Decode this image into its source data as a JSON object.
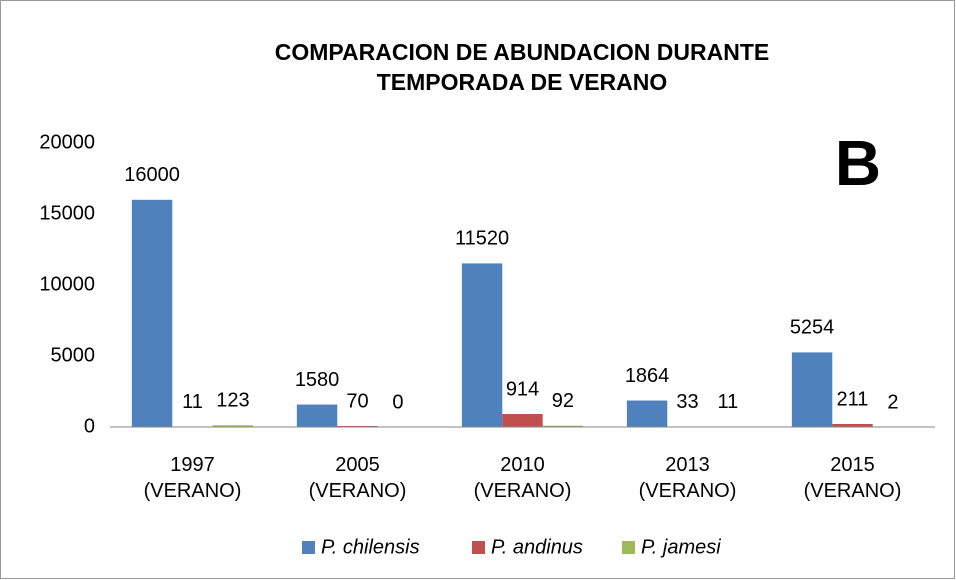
{
  "chart_data": {
    "type": "bar",
    "title": "COMPARACION DE ABUNDACION DURANTE\nTEMPORADA DE VERANO",
    "annotation": "B",
    "categories": [
      "1997\n(VERANO)",
      "2005\n(VERANO)",
      "2010\n(VERANO)",
      "2013\n(VERANO)",
      "2015\n(VERANO)"
    ],
    "series": [
      {
        "name": "P. chilensis",
        "color": "#4f81bd",
        "values": [
          16000,
          1580,
          11520,
          1864,
          5254
        ]
      },
      {
        "name": "P. andinus",
        "color": "#c0504d",
        "values": [
          11,
          70,
          914,
          33,
          211
        ]
      },
      {
        "name": "P. jamesi",
        "color": "#9bbb59",
        "values": [
          123,
          0,
          92,
          11,
          2
        ]
      }
    ],
    "ylim": [
      0,
      20000
    ],
    "yticks": [
      0,
      5000,
      10000,
      15000,
      20000
    ],
    "grid": false,
    "legend": "bottom"
  }
}
